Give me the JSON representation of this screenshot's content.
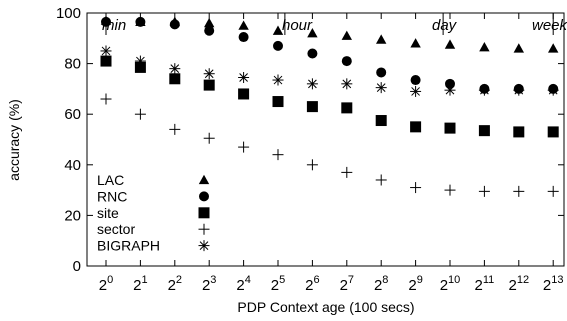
{
  "chart_data": {
    "type": "scatter",
    "xlabel": "PDP Context age (100 secs)",
    "ylabel": "accuracy (%)",
    "ylim": [
      0,
      100
    ],
    "yticks": [
      0,
      20,
      40,
      60,
      80,
      100
    ],
    "x": [
      0,
      1,
      2,
      3,
      4,
      5,
      6,
      7,
      8,
      9,
      10,
      11,
      12,
      13
    ],
    "x_tick_labels": [
      {
        "base": "2",
        "exp": "0"
      },
      {
        "base": "2",
        "exp": "1"
      },
      {
        "base": "2",
        "exp": "2"
      },
      {
        "base": "2",
        "exp": "3"
      },
      {
        "base": "2",
        "exp": "4"
      },
      {
        "base": "2",
        "exp": "5"
      },
      {
        "base": "2",
        "exp": "6"
      },
      {
        "base": "2",
        "exp": "7"
      },
      {
        "base": "2",
        "exp": "8"
      },
      {
        "base": "2",
        "exp": "9"
      },
      {
        "base": "2",
        "exp": "10"
      },
      {
        "base": "2",
        "exp": "11"
      },
      {
        "base": "2",
        "exp": "12"
      },
      {
        "base": "2",
        "exp": "13"
      }
    ],
    "x_scale": "log2",
    "legend_position": "bottom-left",
    "grid": false,
    "series": [
      {
        "name": "LAC",
        "marker": "triangle",
        "values": [
          97,
          96.5,
          96.5,
          96,
          95,
          93,
          92,
          91,
          89.5,
          88,
          87.5,
          86.5,
          86,
          86
        ]
      },
      {
        "name": "RNC",
        "marker": "circle",
        "values": [
          96.5,
          96.5,
          95.5,
          93,
          90.5,
          87,
          84,
          81,
          76.5,
          73.5,
          72,
          70,
          70,
          70
        ]
      },
      {
        "name": "site",
        "marker": "square",
        "values": [
          81,
          78.5,
          74,
          71.5,
          68,
          65,
          63,
          62.5,
          57.5,
          55,
          54.5,
          53.5,
          53,
          53
        ]
      },
      {
        "name": "sector",
        "marker": "plus",
        "values": [
          66,
          60,
          54,
          50.5,
          47,
          44,
          40,
          37,
          34,
          31,
          30,
          29.5,
          29.5,
          29.5
        ]
      },
      {
        "name": "BIGRAPH",
        "marker": "star",
        "values": [
          85,
          81,
          78,
          76,
          74.5,
          73.5,
          72,
          72,
          70.5,
          69,
          69.5,
          69.5,
          69.5,
          69.5
        ]
      }
    ],
    "annotations": [
      {
        "text": "min",
        "x": 0
      },
      {
        "text": "hour",
        "x": 5.2
      },
      {
        "text": "day",
        "x": 9.8
      },
      {
        "text": "week",
        "x": 13
      }
    ]
  }
}
